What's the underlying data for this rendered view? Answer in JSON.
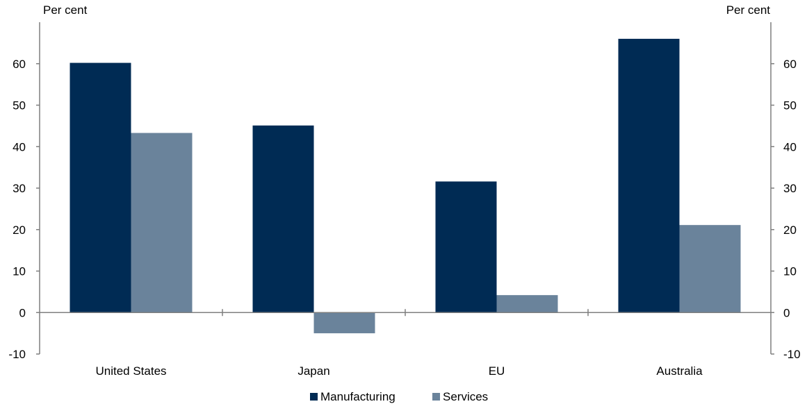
{
  "chart_data": {
    "type": "bar",
    "left_axis_unit": "Per cent",
    "right_axis_unit": "Per cent",
    "categories": [
      "United States",
      "Japan",
      "EU",
      "Australia"
    ],
    "series": [
      {
        "name": "Manufacturing",
        "values": [
          60.2,
          45.1,
          31.6,
          66.0
        ],
        "color": "#002b54"
      },
      {
        "name": "Services",
        "values": [
          43.3,
          -5.0,
          4.2,
          21.1
        ],
        "color": "#6a839b"
      }
    ],
    "ylim": [
      -10,
      70
    ],
    "yticks": [
      -10,
      0,
      10,
      20,
      30,
      40,
      50,
      60
    ],
    "grid": false,
    "legend_position": "bottom-center",
    "axis_color": "#7f7f7f"
  }
}
